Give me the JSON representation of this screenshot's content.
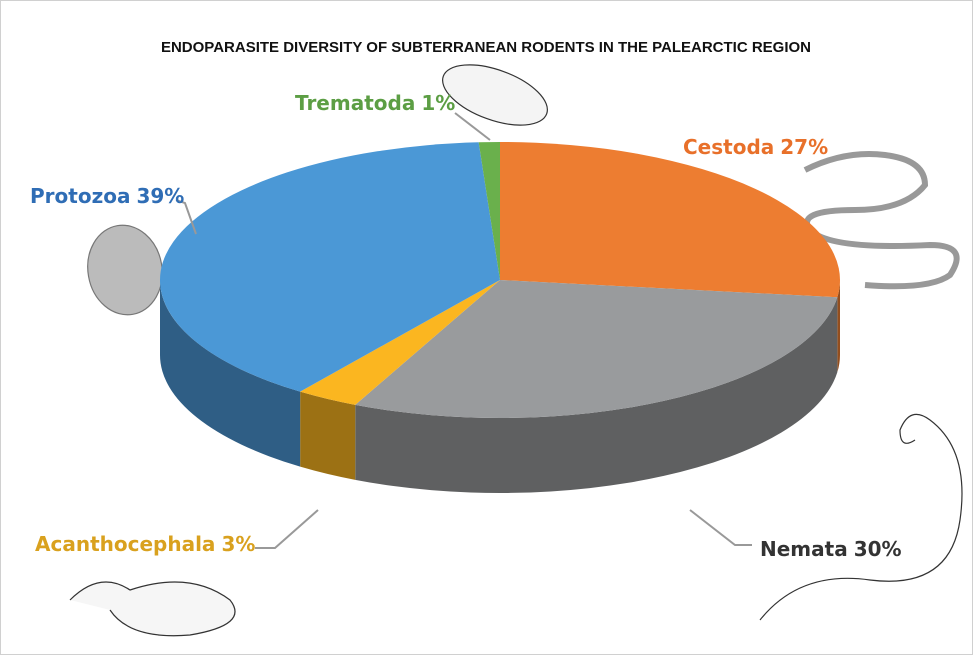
{
  "chart_data": {
    "type": "pie",
    "title": "ENDOPARASITE DIVERSITY OF SUBTERRANEAN RODENTS IN THE PALEARCTIC REGION",
    "categories": [
      "Cestoda",
      "Nemata",
      "Acanthocephala",
      "Protozoa",
      "Trematoda"
    ],
    "values": [
      27,
      30,
      3,
      39,
      1
    ],
    "value_labels": [
      "27%",
      "30%",
      "3%",
      "39%",
      "1%"
    ],
    "colors": [
      "#ed7d31",
      "#999b9d",
      "#fbb620",
      "#4b98d6",
      "#6ab04c"
    ],
    "label_colors": [
      "#e8702a",
      "#333333",
      "#d9a11e",
      "#2f6db5",
      "#5c9e44"
    ],
    "start_angle": 0,
    "direction": "clockwise"
  }
}
